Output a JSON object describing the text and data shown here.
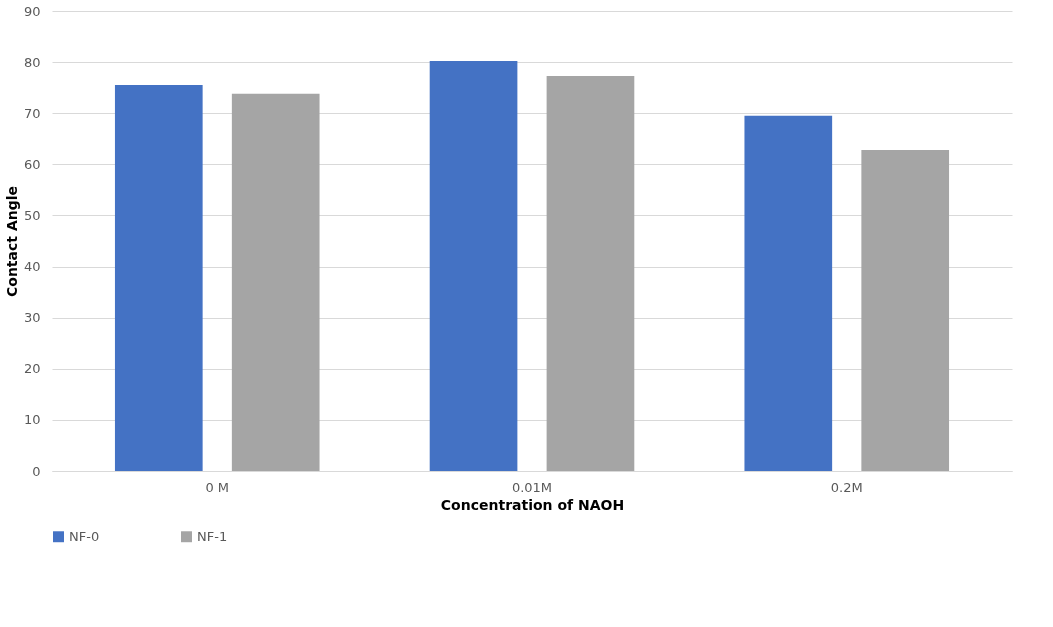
{
  "chart_data": {
    "type": "bar",
    "xlabel": "Concentration of NAOH",
    "ylabel": "Contact Angle",
    "categories": [
      "0 M",
      "0.01M",
      "0.2M"
    ],
    "series": [
      {
        "name": "NF-0",
        "color": "#4472c4",
        "values": [
          75.5,
          80.2,
          69.5
        ]
      },
      {
        "name": "NF-1",
        "color": "#a5a5a5",
        "values": [
          73.8,
          77.3,
          62.8
        ]
      }
    ],
    "ylim": [
      0,
      90
    ],
    "yticks": [
      0,
      10,
      20,
      30,
      40,
      50,
      60,
      70,
      80,
      90
    ],
    "grid": "y",
    "legend": "bottom"
  }
}
